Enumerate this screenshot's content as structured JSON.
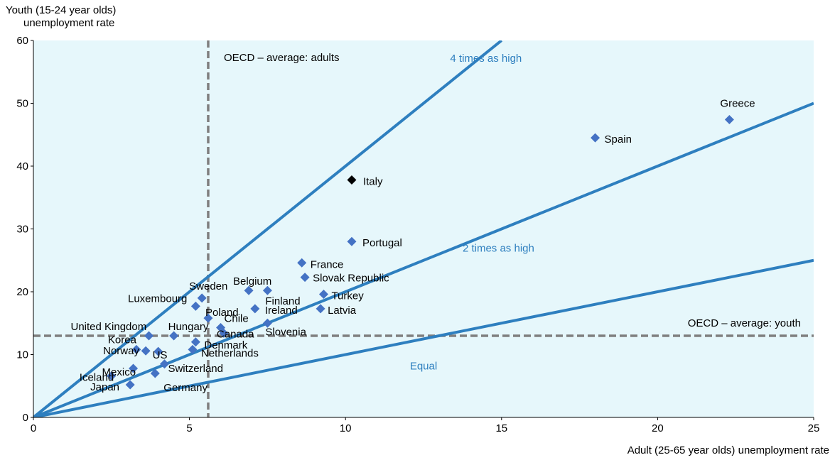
{
  "chart_data": {
    "type": "scatter",
    "title": "",
    "ylabel_line1": "Youth (15-24 year olds)",
    "ylabel_line2": "unemployment  rate",
    "xlabel": "Adult (25-65 year olds) unemployment rate",
    "xlim": [
      0,
      25
    ],
    "ylim": [
      0,
      60
    ],
    "xticks": [
      0,
      5,
      10,
      15,
      20,
      25
    ],
    "yticks": [
      0,
      10,
      20,
      30,
      40,
      50,
      60
    ],
    "colors": {
      "background": "#e6f7fb",
      "line": "#2e7fbf",
      "marker": "#4472c4",
      "highlight": "#000000",
      "reference": "#7f7f7f",
      "line_label": "#2e7fbf"
    },
    "reference_lines": [
      {
        "name": "OECD – average: adults",
        "orientation": "vertical",
        "value": 5.6
      },
      {
        "name": "OECD – average: youth",
        "orientation": "horizontal",
        "value": 13.0
      }
    ],
    "ratio_lines": [
      {
        "label": "4 times as high",
        "slope": 4
      },
      {
        "label": "2 times as high",
        "slope": 2
      },
      {
        "label": "Equal",
        "slope": 1
      }
    ],
    "points": [
      {
        "label": "Greece",
        "x": 22.3,
        "y": 47.4
      },
      {
        "label": "Spain",
        "x": 18.0,
        "y": 44.5
      },
      {
        "label": "Italy",
        "x": 10.2,
        "y": 37.8,
        "highlight": true
      },
      {
        "label": "Portugal",
        "x": 10.2,
        "y": 28.0
      },
      {
        "label": "France",
        "x": 8.6,
        "y": 24.6
      },
      {
        "label": "Slovak Republic",
        "x": 8.7,
        "y": 22.3
      },
      {
        "label": "Belgium",
        "x": 6.9,
        "y": 20.2
      },
      {
        "label": "Finland",
        "x": 7.5,
        "y": 20.2
      },
      {
        "label": "Turkey",
        "x": 9.3,
        "y": 19.6
      },
      {
        "label": "Latvia",
        "x": 9.2,
        "y": 17.3
      },
      {
        "label": "Ireland",
        "x": 7.1,
        "y": 17.3
      },
      {
        "label": "Sweden",
        "x": 5.4,
        "y": 19.0
      },
      {
        "label": "Luxembourg",
        "x": 5.2,
        "y": 17.7
      },
      {
        "label": "Poland",
        "x": 5.6,
        "y": 15.8
      },
      {
        "label": "Chile",
        "x": 6.0,
        "y": 14.3
      },
      {
        "label": "Canada",
        "x": 6.1,
        "y": 13.4
      },
      {
        "label": "Slovenia",
        "x": 7.5,
        "y": 15.0
      },
      {
        "label": "Hungary",
        "x": 4.5,
        "y": 13.0
      },
      {
        "label": "United Kingdom",
        "x": 3.7,
        "y": 13.0
      },
      {
        "label": "Denmark",
        "x": 5.2,
        "y": 12.0
      },
      {
        "label": "Netherlands",
        "x": 5.1,
        "y": 10.8
      },
      {
        "label": "Korea",
        "x": 3.3,
        "y": 10.8
      },
      {
        "label": "Norway",
        "x": 3.6,
        "y": 10.6
      },
      {
        "label": "US",
        "x": 4.0,
        "y": 10.5
      },
      {
        "label": "Switzerland",
        "x": 4.2,
        "y": 8.5
      },
      {
        "label": "Mexico",
        "x": 3.2,
        "y": 7.8
      },
      {
        "label": "Iceland",
        "x": 2.5,
        "y": 6.6
      },
      {
        "label": "Japan",
        "x": 3.1,
        "y": 5.2
      },
      {
        "label": "Germany",
        "x": 3.9,
        "y": 7.0
      }
    ]
  }
}
